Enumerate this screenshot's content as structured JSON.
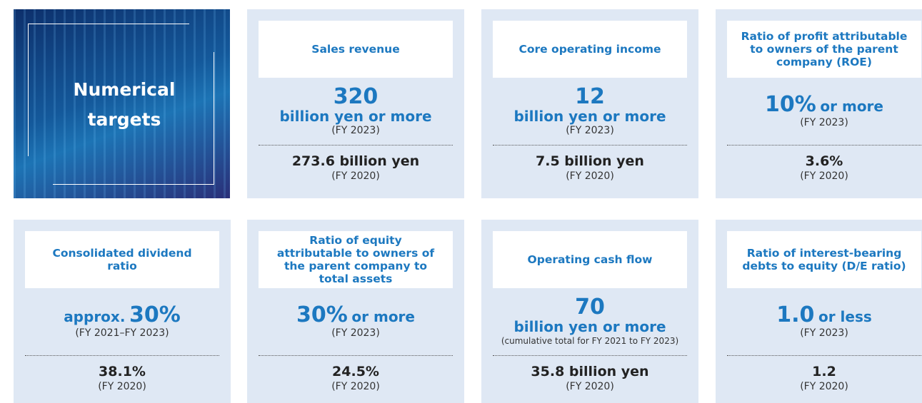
{
  "panel": {
    "title": "Numerical targets"
  },
  "cards": [
    {
      "header": "Sales revenue",
      "target_value": "320",
      "target_unit": "billion yen or more",
      "target_period": "(FY 2023)",
      "actual": "273.6 billion yen",
      "actual_period": "(FY 2020)"
    },
    {
      "header": "Core operating income",
      "target_value": "12",
      "target_unit": "billion yen or more",
      "target_period": "(FY 2023)",
      "actual": "7.5 billion yen",
      "actual_period": "(FY 2020)"
    },
    {
      "header": "Ratio of profit attributable to owners of the parent company (ROE)",
      "target_value": "10%",
      "target_suffix": "or more",
      "target_period": "(FY 2023)",
      "actual": "3.6%",
      "actual_period": "(FY 2020)"
    },
    {
      "header": "Consolidated dividend ratio",
      "target_prefix": "approx.",
      "target_value": "30%",
      "target_period": "(FY 2021–FY 2023)",
      "actual": "38.1%",
      "actual_period": "(FY 2020)"
    },
    {
      "header": "Ratio of equity attributable to owners of the parent company to total assets",
      "target_value": "30%",
      "target_suffix": "or more",
      "target_period": "(FY 2023)",
      "actual": "24.5%",
      "actual_period": "(FY 2020)"
    },
    {
      "header": "Operating cash flow",
      "target_value": "70",
      "target_unit": "billion yen or more",
      "target_period": "(cumulative total for FY 2021 to FY 2023)",
      "actual": "35.8 billion yen",
      "actual_period": "(FY 2020)"
    },
    {
      "header": "Ratio of interest-bearing debts to equity (D/E ratio)",
      "target_value": "1.0",
      "target_suffix": "or less",
      "target_period": "(FY 2023)",
      "actual": "1.2",
      "actual_period": "(FY 2020)"
    }
  ]
}
